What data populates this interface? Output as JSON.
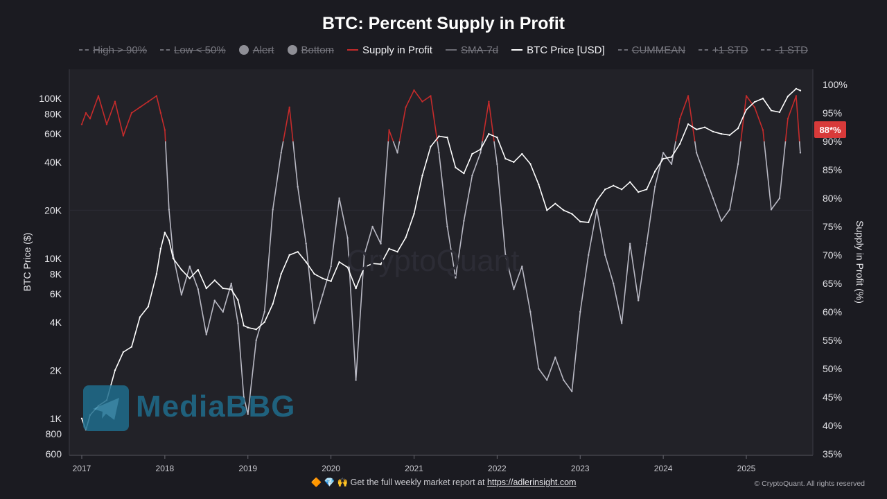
{
  "title": "BTC: Percent Supply in Profit",
  "legend": [
    {
      "label": "High > 90%",
      "swatch": "dash",
      "active": false
    },
    {
      "label": "Low < 50%",
      "swatch": "dash",
      "active": false
    },
    {
      "label": "Alert",
      "swatch": "dot",
      "active": false
    },
    {
      "label": "Bottom",
      "swatch": "dot",
      "active": false
    },
    {
      "label": "Supply in Profit",
      "swatch": "line",
      "color": "#c62b2b",
      "active": true
    },
    {
      "label": "SMA-7d",
      "swatch": "line",
      "active": false
    },
    {
      "label": "BTC Price [USD]",
      "swatch": "line",
      "color": "#ffffff",
      "active": true
    },
    {
      "label": "CUMMEAN",
      "swatch": "dash",
      "active": false
    },
    {
      "label": "+1 STD",
      "swatch": "dash",
      "active": false
    },
    {
      "label": "-1 STD",
      "swatch": "dash",
      "active": false
    }
  ],
  "watermarks": {
    "brand": "MediaBBG",
    "source": "CryptoQuant"
  },
  "current_badge": "88*%",
  "footer": {
    "prefix": "🔶 💎 🙌 Get the full weekly market report at ",
    "link": "https://adlerinsight.com",
    "copyright": "© CryptoQuant. All rights reserved"
  },
  "colors": {
    "background": "#1b1b21",
    "plot_bg": "#222228",
    "price": "#ffffff",
    "supply": "#b9b9c4",
    "supply_high": "#c62b2b",
    "badge": "#d83a3a"
  },
  "chart_data": {
    "type": "line",
    "left_axis": {
      "label": "BTC Price ($)",
      "scale": "log",
      "ticks": [
        600,
        800,
        1000,
        2000,
        4000,
        6000,
        8000,
        10000,
        20000,
        40000,
        60000,
        80000,
        100000
      ],
      "tick_labels": [
        "600",
        "800",
        "1K",
        "2K",
        "4K",
        "6K",
        "8K",
        "10K",
        "20K",
        "40K",
        "60K",
        "80K",
        "100K"
      ]
    },
    "right_axis": {
      "label": "Supply in Profit (%)",
      "ticks": [
        35,
        40,
        45,
        50,
        55,
        60,
        65,
        70,
        75,
        80,
        85,
        90,
        95,
        100
      ],
      "tick_labels": [
        "35%",
        "40%",
        "45%",
        "50%",
        "55%",
        "60%",
        "65%",
        "70%",
        "75%",
        "80%",
        "85%",
        "90%",
        "95%",
        "100%"
      ]
    },
    "x_axis": {
      "ticks": [
        "2017",
        "2018",
        "2019",
        "2020",
        "2021",
        "2022",
        "2023",
        "2024",
        "2025"
      ],
      "range": [
        2017,
        2025.7
      ]
    },
    "high_threshold": 90,
    "series": [
      {
        "name": "BTC Price [USD]",
        "color": "#ffffff",
        "x": [
          2017.0,
          2017.05,
          2017.1,
          2017.2,
          2017.3,
          2017.4,
          2017.5,
          2017.6,
          2017.7,
          2017.8,
          2017.9,
          2017.95,
          2018.0,
          2018.05,
          2018.1,
          2018.2,
          2018.3,
          2018.4,
          2018.5,
          2018.6,
          2018.7,
          2018.8,
          2018.88,
          2018.95,
          2019.0,
          2019.1,
          2019.2,
          2019.3,
          2019.4,
          2019.5,
          2019.6,
          2019.7,
          2019.8,
          2019.9,
          2020.0,
          2020.1,
          2020.2,
          2020.3,
          2020.4,
          2020.5,
          2020.6,
          2020.7,
          2020.8,
          2020.9,
          2021.0,
          2021.1,
          2021.2,
          2021.3,
          2021.4,
          2021.5,
          2021.6,
          2021.7,
          2021.8,
          2021.9,
          2022.0,
          2022.1,
          2022.2,
          2022.3,
          2022.4,
          2022.5,
          2022.6,
          2022.7,
          2022.8,
          2022.9,
          2023.0,
          2023.1,
          2023.2,
          2023.3,
          2023.4,
          2023.5,
          2023.6,
          2023.7,
          2023.8,
          2023.9,
          2024.0,
          2024.1,
          2024.2,
          2024.3,
          2024.4,
          2024.5,
          2024.6,
          2024.7,
          2024.8,
          2024.9,
          2025.0,
          2025.1,
          2025.2,
          2025.3,
          2025.4,
          2025.5,
          2025.6,
          2025.65
        ],
        "y": [
          1000,
          850,
          1050,
          1200,
          1300,
          2000,
          2600,
          2800,
          4300,
          5000,
          8000,
          11500,
          14500,
          13000,
          10000,
          8500,
          7500,
          8500,
          6500,
          7300,
          6500,
          6400,
          5500,
          3800,
          3700,
          3600,
          4000,
          5200,
          8000,
          10500,
          11000,
          9500,
          8000,
          7500,
          7200,
          9500,
          8800,
          6500,
          8800,
          9300,
          9200,
          11500,
          11000,
          13500,
          19000,
          33000,
          50000,
          58000,
          57000,
          37000,
          34000,
          45000,
          48000,
          60000,
          57000,
          42000,
          40000,
          45000,
          39000,
          29000,
          20000,
          22000,
          20000,
          19000,
          17000,
          16800,
          23000,
          27000,
          28500,
          27000,
          30000,
          26000,
          27000,
          35000,
          42000,
          43000,
          52000,
          69000,
          64000,
          66000,
          62000,
          60000,
          59000,
          65000,
          85000,
          95000,
          100000,
          84000,
          82000,
          103000,
          115000,
          112000
        ]
      },
      {
        "name": "Supply in Profit",
        "color": "#b9b9c4",
        "x": [
          2017.0,
          2017.05,
          2017.1,
          2017.2,
          2017.3,
          2017.4,
          2017.5,
          2017.6,
          2017.7,
          2017.8,
          2017.9,
          2017.95,
          2018.0,
          2018.05,
          2018.1,
          2018.2,
          2018.3,
          2018.4,
          2018.5,
          2018.6,
          2018.7,
          2018.8,
          2018.88,
          2018.95,
          2019.0,
          2019.1,
          2019.2,
          2019.3,
          2019.4,
          2019.5,
          2019.6,
          2019.7,
          2019.8,
          2019.9,
          2020.0,
          2020.1,
          2020.2,
          2020.3,
          2020.4,
          2020.5,
          2020.6,
          2020.7,
          2020.8,
          2020.9,
          2021.0,
          2021.1,
          2021.2,
          2021.3,
          2021.4,
          2021.5,
          2021.6,
          2021.7,
          2021.8,
          2021.9,
          2022.0,
          2022.1,
          2022.2,
          2022.3,
          2022.4,
          2022.5,
          2022.6,
          2022.7,
          2022.8,
          2022.9,
          2023.0,
          2023.1,
          2023.2,
          2023.3,
          2023.4,
          2023.5,
          2023.6,
          2023.7,
          2023.8,
          2023.9,
          2024.0,
          2024.1,
          2024.2,
          2024.3,
          2024.4,
          2024.5,
          2024.6,
          2024.7,
          2024.8,
          2024.9,
          2025.0,
          2025.1,
          2025.2,
          2025.3,
          2025.4,
          2025.5,
          2025.6,
          2025.65
        ],
        "y": [
          93,
          95,
          94,
          98,
          93,
          97,
          91,
          95,
          96,
          97,
          98,
          95,
          92,
          78,
          70,
          63,
          68,
          64,
          56,
          62,
          60,
          65,
          58,
          45,
          42,
          55,
          60,
          78,
          88,
          96,
          82,
          72,
          58,
          63,
          68,
          80,
          73,
          48,
          70,
          75,
          72,
          92,
          88,
          96,
          99,
          97,
          98,
          88,
          75,
          66,
          76,
          84,
          88,
          97,
          86,
          70,
          64,
          68,
          60,
          50,
          48,
          52,
          48,
          46,
          60,
          70,
          78,
          70,
          65,
          58,
          72,
          62,
          72,
          82,
          88,
          86,
          94,
          98,
          88,
          84,
          80,
          76,
          78,
          86,
          98,
          96,
          92,
          78,
          80,
          94,
          98,
          88
        ]
      }
    ]
  }
}
